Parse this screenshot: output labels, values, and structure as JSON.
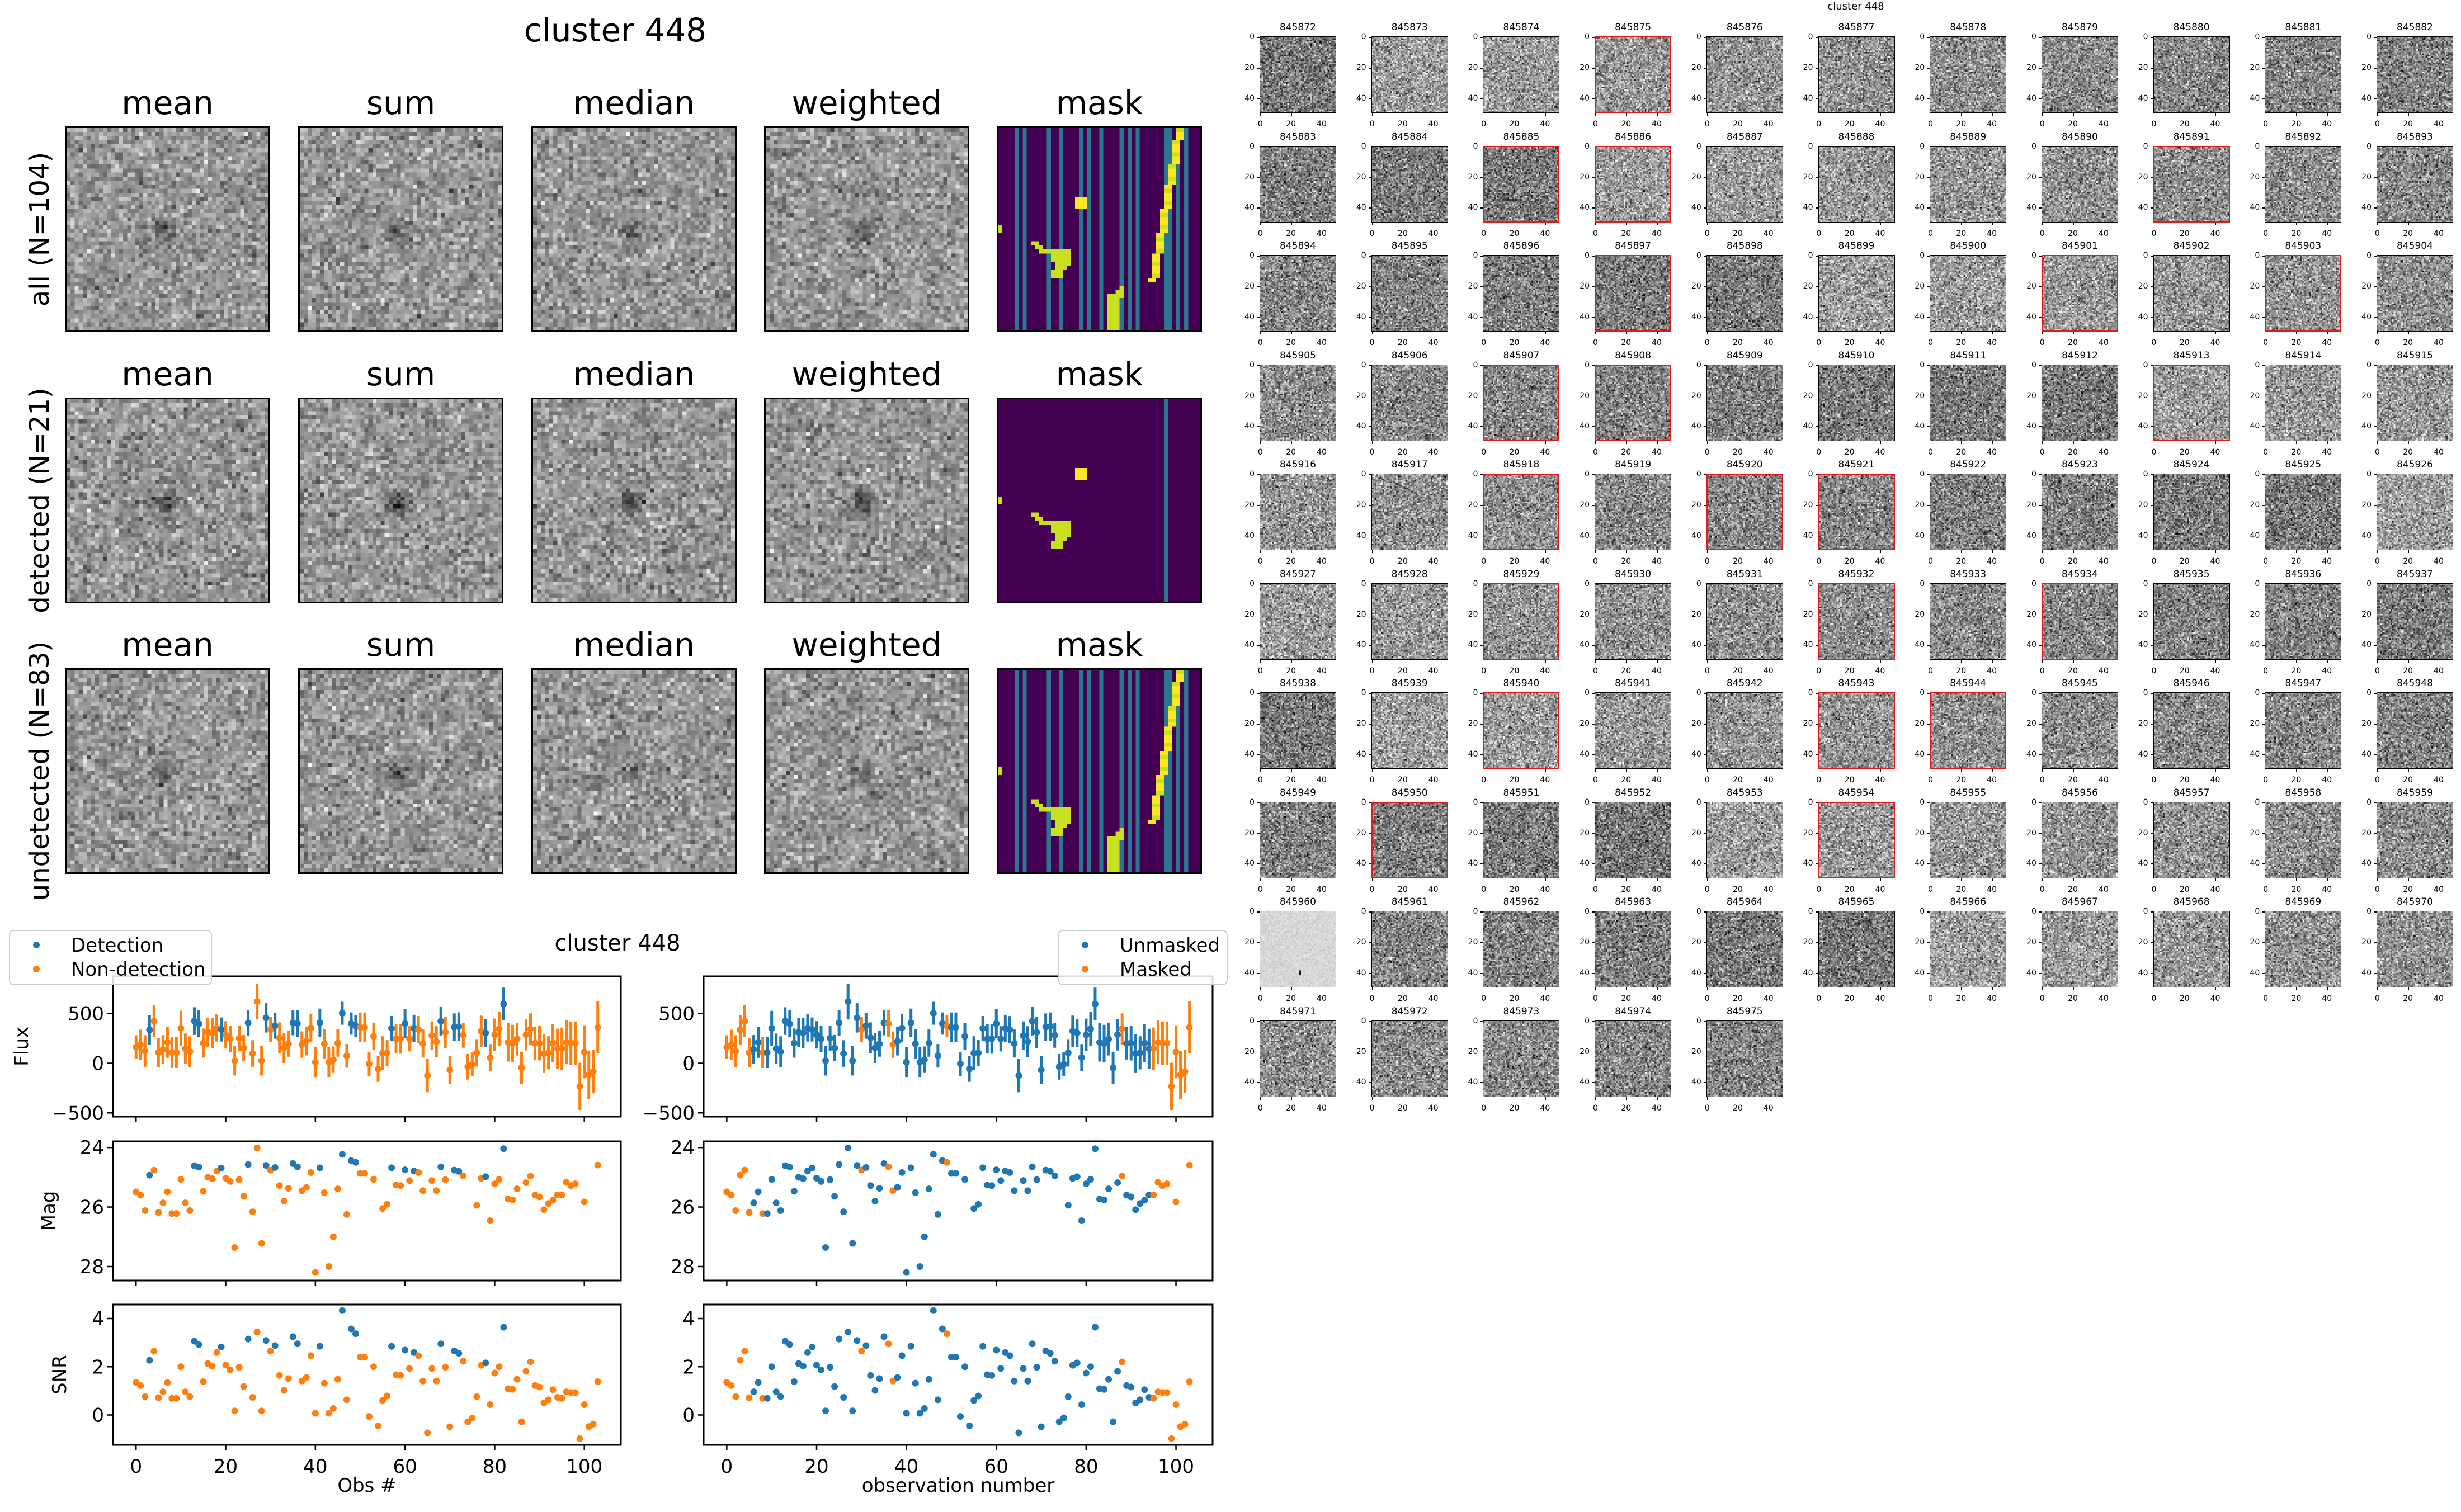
{
  "stacks": {
    "title": "cluster 448",
    "columns": [
      "mean",
      "sum",
      "median",
      "weighted",
      "mask"
    ],
    "rows": [
      "all (N=104)",
      "detected (N=21)",
      "undetected (N=83)"
    ]
  },
  "chart_data": {
    "type": "scatter",
    "title": "cluster 448",
    "colors": {
      "blue": "#1f77b4",
      "orange": "#ff7f0e"
    },
    "left": {
      "xlabel": "Obs #",
      "legend": [
        "Detection",
        "Non-detection"
      ],
      "legend_position": "top-left"
    },
    "right": {
      "xlabel": "observation number",
      "legend": [
        "Unmasked",
        "Masked"
      ],
      "legend_position": "top-right"
    },
    "ylabels": [
      "Flux",
      "Mag",
      "SNR"
    ],
    "xlim": [
      -5.15,
      108.15
    ],
    "xticks": [
      0,
      20,
      40,
      60,
      80,
      100
    ],
    "flux_ylim": [
      -538,
      876
    ],
    "flux_yticks": [
      -500,
      0,
      500
    ],
    "mag_ylim": [
      28.47,
      23.79
    ],
    "mag_yticks": [
      24,
      26,
      28
    ],
    "snr_ylim": [
      -1.24,
      4.58
    ],
    "snr_yticks": [
      0,
      2,
      4
    ],
    "flux": [
      162,
      186,
      122,
      336,
      423,
      107,
      139,
      211,
      107,
      107,
      352,
      147,
      117,
      425,
      397,
      203,
      312,
      305,
      355,
      340,
      286,
      246,
      26,
      252,
      154,
      408,
      98,
      622,
      26,
      457,
      340,
      378,
      256,
      154,
      196,
      408,
      400,
      188,
      222,
      355,
      11,
      408,
      196,
      11,
      36,
      203,
      504,
      75,
      400,
      376,
      361,
      361,
      -6,
      271,
      -58,
      102,
      105,
      352,
      246,
      246,
      400,
      246,
      352,
      338,
      199,
      -124,
      278,
      218,
      423,
      312,
      -68,
      365,
      368,
      282,
      -36,
      -11,
      105,
      323,
      305,
      58,
      286,
      346,
      598,
      211,
      199,
      244,
      -45,
      288,
      346,
      203,
      203,
      98,
      105,
      203,
      147,
      147,
      211,
      203,
      203,
      -233,
      115,
      -117,
      -83,
      361
    ],
    "flux_err": [
      120,
      152,
      160,
      148,
      160,
      149,
      145,
      156,
      155,
      155,
      176,
      153,
      154,
      139,
      136,
      147,
      146,
      150,
      137,
      121,
      138,
      132,
      150,
      127,
      131,
      130,
      134,
      181,
      150,
      148,
      128,
      131,
      156,
      151,
      130,
      126,
      136,
      133,
      143,
      144,
      150,
      143,
      148,
      150,
      133,
      137,
      116,
      119,
      112,
      112,
      150,
      150,
      120,
      136,
      129,
      170,
      133,
      124,
      147,
      150,
      149,
      127,
      136,
      137,
      141,
      168,
      144,
      155,
      143,
      158,
      139,
      137,
      144,
      126,
      129,
      120,
      138,
      157,
      141,
      135,
      164,
      173,
      164,
      194,
      188,
      165,
      161,
      159,
      157,
      166,
      175,
      196,
      167,
      193,
      201,
      213,
      220,
      218,
      218,
      238,
      267,
      244,
      218,
      262
    ],
    "mag": [
      25.49,
      25.6,
      26.12,
      24.93,
      24.76,
      26.18,
      25.86,
      25.49,
      26.22,
      26.22,
      25.07,
      25.86,
      26.12,
      24.61,
      24.66,
      25.47,
      25.0,
      25.05,
      24.79,
      24.69,
      25.03,
      25.14,
      27.36,
      25.08,
      25.64,
      24.57,
      26.16,
      24.01,
      27.22,
      24.6,
      24.76,
      24.67,
      25.28,
      25.8,
      25.37,
      24.54,
      24.65,
      25.45,
      25.34,
      24.84,
      28.2,
      24.68,
      25.52,
      28.0,
      27.0,
      25.39,
      24.23,
      26.25,
      24.44,
      24.5,
      24.87,
      24.87,
      null,
      25.07,
      null,
      26.05,
      25.91,
      24.68,
      25.26,
      25.28,
      24.75,
      25.11,
      24.79,
      24.84,
      25.45,
      null,
      25.11,
      25.45,
      24.65,
      25.08,
      null,
      24.76,
      24.8,
      24.95,
      null,
      null,
      25.94,
      25.04,
      24.98,
      26.46,
      25.22,
      25.07,
      24.04,
      25.73,
      25.76,
      25.39,
      null,
      25.18,
      24.96,
      25.6,
      25.66,
      26.09,
      25.88,
      25.77,
      25.59,
      25.59,
      25.17,
      25.28,
      25.22,
      null,
      25.83,
      null,
      null,
      24.59
    ],
    "snr": [
      1.35,
      1.22,
      0.76,
      2.27,
      2.65,
      0.72,
      0.96,
      1.35,
      0.69,
      0.69,
      2.0,
      0.96,
      0.76,
      3.06,
      2.92,
      1.38,
      2.13,
      2.03,
      2.59,
      2.82,
      2.07,
      1.87,
      0.17,
      1.98,
      1.18,
      3.15,
      0.73,
      3.44,
      0.17,
      3.09,
      2.65,
      2.88,
      1.64,
      1.02,
      1.51,
      3.25,
      2.95,
      1.41,
      1.55,
      2.46,
      0.07,
      2.85,
      1.32,
      0.07,
      0.27,
      1.48,
      4.33,
      0.63,
      3.57,
      3.37,
      2.4,
      2.4,
      -0.06,
      2.0,
      -0.45,
      0.6,
      0.79,
      2.85,
      1.67,
      1.64,
      2.69,
      1.93,
      2.59,
      2.46,
      1.41,
      -0.74,
      1.93,
      1.41,
      2.95,
      1.98,
      -0.49,
      2.66,
      2.56,
      2.23,
      -0.28,
      -0.12,
      0.76,
      2.06,
      2.16,
      0.43,
      1.74,
      2.0,
      3.64,
      1.09,
      1.06,
      1.48,
      -0.28,
      1.81,
      2.2,
      1.22,
      1.16,
      0.5,
      0.63,
      1.05,
      0.73,
      0.69,
      0.96,
      0.93,
      0.93,
      -0.98,
      0.43,
      -0.48,
      -0.38,
      1.38
    ],
    "detected_indices": [
      3,
      13,
      14,
      19,
      25,
      29,
      31,
      35,
      36,
      41,
      46,
      48,
      49,
      57,
      60,
      62,
      68,
      71,
      72,
      78,
      82
    ],
    "masked_indices": [
      0,
      1,
      2,
      3,
      4,
      5,
      8,
      30,
      36,
      37,
      49,
      88,
      95,
      96,
      97,
      98,
      99,
      100,
      101,
      102,
      103
    ]
  },
  "thumbnails": {
    "title": "cluster 448",
    "tick_labels": [
      "0",
      "20",
      "40"
    ],
    "ids": [
      "845872",
      "845873",
      "845874",
      "845875",
      "845876",
      "845877",
      "845878",
      "845879",
      "845880",
      "845881",
      "845882",
      "845883",
      "845884",
      "845885",
      "845886",
      "845887",
      "845888",
      "845889",
      "845890",
      "845891",
      "845892",
      "845893",
      "845894",
      "845895",
      "845896",
      "845897",
      "845898",
      "845899",
      "845900",
      "845901",
      "845902",
      "845903",
      "845904",
      "845905",
      "845906",
      "845907",
      "845908",
      "845909",
      "845910",
      "845911",
      "845912",
      "845913",
      "845914",
      "845915",
      "845916",
      "845917",
      "845918",
      "845919",
      "845920",
      "845921",
      "845922",
      "845923",
      "845924",
      "845925",
      "845926",
      "845927",
      "845928",
      "845929",
      "845930",
      "845931",
      "845932",
      "845933",
      "845934",
      "845935",
      "845936",
      "845937",
      "845938",
      "845939",
      "845940",
      "845941",
      "845942",
      "845943",
      "845944",
      "845945",
      "845946",
      "845947",
      "845948",
      "845949",
      "845950",
      "845951",
      "845952",
      "845953",
      "845954",
      "845955",
      "845956",
      "845957",
      "845958",
      "845959",
      "845960",
      "845961",
      "845962",
      "845963",
      "845964",
      "845965",
      "845966",
      "845967",
      "845968",
      "845969",
      "845970",
      "845971",
      "845972",
      "845973",
      "845974",
      "845975"
    ],
    "detected_ids": [
      "845875",
      "845885",
      "845886",
      "845891",
      "845897",
      "845901",
      "845903",
      "845907",
      "845908",
      "845913",
      "845918",
      "845920",
      "845921",
      "845929",
      "845932",
      "845934",
      "845940",
      "845943",
      "845944",
      "845950",
      "845954"
    ],
    "bright_id": "845960"
  }
}
